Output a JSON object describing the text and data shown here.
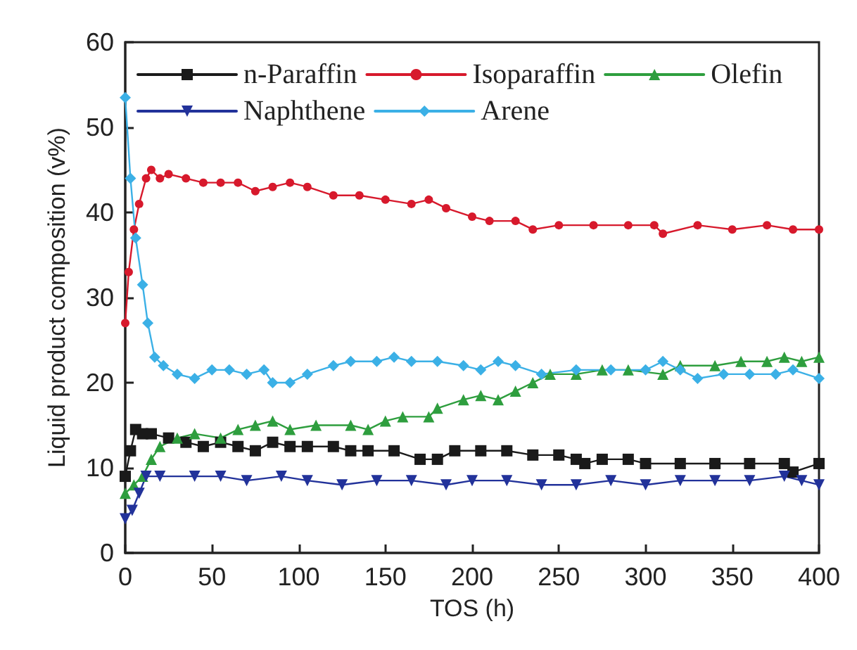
{
  "chart_data": {
    "type": "line",
    "xlabel": "TOS (h)",
    "ylabel": "Liquid product composition (v%)",
    "xlim": [
      0,
      400
    ],
    "xticks": [
      0,
      50,
      100,
      150,
      200,
      250,
      300,
      350,
      400
    ],
    "ylim": [
      0,
      60
    ],
    "yticks": [
      0,
      10,
      20,
      30,
      40,
      50,
      60
    ],
    "grid": false,
    "legend": "top",
    "series": [
      {
        "name": "n-Paraffin",
        "color": "#1a1a1a",
        "marker": "square",
        "x": [
          0,
          3,
          6,
          10,
          15,
          25,
          35,
          45,
          55,
          65,
          75,
          85,
          95,
          105,
          120,
          130,
          140,
          155,
          170,
          180,
          190,
          205,
          220,
          235,
          250,
          260,
          265,
          275,
          290,
          300,
          320,
          340,
          360,
          380,
          385,
          400
        ],
        "values": [
          9,
          12,
          14.5,
          14,
          14,
          13.5,
          13,
          12.5,
          13,
          12.5,
          12,
          13,
          12.5,
          12.5,
          12.5,
          12,
          12,
          12,
          11,
          11,
          12,
          12,
          12,
          11.5,
          11.5,
          11,
          10.5,
          11,
          11,
          10.5,
          10.5,
          10.5,
          10.5,
          10.5,
          9.5,
          10.5
        ]
      },
      {
        "name": "Isoparaffin",
        "color": "#d7192c",
        "marker": "circle",
        "x": [
          0,
          2,
          5,
          8,
          12,
          15,
          20,
          25,
          35,
          45,
          55,
          65,
          75,
          85,
          95,
          105,
          120,
          135,
          150,
          165,
          175,
          185,
          200,
          210,
          225,
          235,
          250,
          270,
          290,
          305,
          310,
          330,
          350,
          370,
          385,
          400
        ],
        "values": [
          27,
          33,
          38,
          41,
          44,
          45,
          44,
          44.5,
          44,
          43.5,
          43.5,
          43.5,
          42.5,
          43,
          43.5,
          43,
          42,
          42,
          41.5,
          41,
          41.5,
          40.5,
          39.5,
          39,
          39,
          38,
          38.5,
          38.5,
          38.5,
          38.5,
          37.5,
          38.5,
          38,
          38.5,
          38,
          38
        ]
      },
      {
        "name": "Olefin",
        "color": "#2e9e3e",
        "marker": "triangle",
        "x": [
          0,
          5,
          10,
          15,
          20,
          30,
          40,
          55,
          65,
          75,
          85,
          95,
          110,
          130,
          140,
          150,
          160,
          175,
          180,
          195,
          205,
          215,
          225,
          235,
          245,
          260,
          275,
          290,
          310,
          320,
          340,
          355,
          370,
          380,
          390,
          400
        ],
        "values": [
          7,
          8,
          9,
          11,
          12.5,
          13.5,
          14,
          13.5,
          14.5,
          15,
          15.5,
          14.5,
          15,
          15,
          14.5,
          15.5,
          16,
          16,
          17,
          18,
          18.5,
          18,
          19,
          20,
          21,
          21,
          21.5,
          21.5,
          21,
          22,
          22,
          22.5,
          22.5,
          23,
          22.5,
          23
        ]
      },
      {
        "name": "Naphthene",
        "color": "#22329a",
        "marker": "triangle-down",
        "x": [
          0,
          4,
          8,
          12,
          20,
          40,
          55,
          70,
          90,
          105,
          125,
          145,
          165,
          185,
          200,
          220,
          240,
          260,
          280,
          300,
          320,
          340,
          360,
          380,
          390,
          400
        ],
        "values": [
          4,
          5,
          7,
          9,
          9,
          9,
          9,
          8.5,
          9,
          8.5,
          8,
          8.5,
          8.5,
          8,
          8.5,
          8.5,
          8,
          8,
          8.5,
          8,
          8.5,
          8.5,
          8.5,
          9,
          8.5,
          8
        ]
      },
      {
        "name": "Arene",
        "color": "#3bb0e6",
        "marker": "diamond",
        "x": [
          0,
          3,
          6,
          10,
          13,
          17,
          22,
          30,
          40,
          50,
          60,
          70,
          80,
          85,
          95,
          105,
          120,
          130,
          145,
          155,
          165,
          180,
          195,
          205,
          215,
          225,
          240,
          260,
          280,
          300,
          310,
          320,
          330,
          345,
          360,
          375,
          385,
          400
        ],
        "values": [
          53.5,
          44,
          37,
          31.5,
          27,
          23,
          22,
          21,
          20.5,
          21.5,
          21.5,
          21,
          21.5,
          20,
          20,
          21,
          22,
          22.5,
          22.5,
          23,
          22.5,
          22.5,
          22,
          21.5,
          22.5,
          22,
          21,
          21.5,
          21.5,
          21.5,
          22.5,
          21.5,
          20.5,
          21,
          21,
          21,
          21.5,
          20.5
        ]
      }
    ]
  }
}
